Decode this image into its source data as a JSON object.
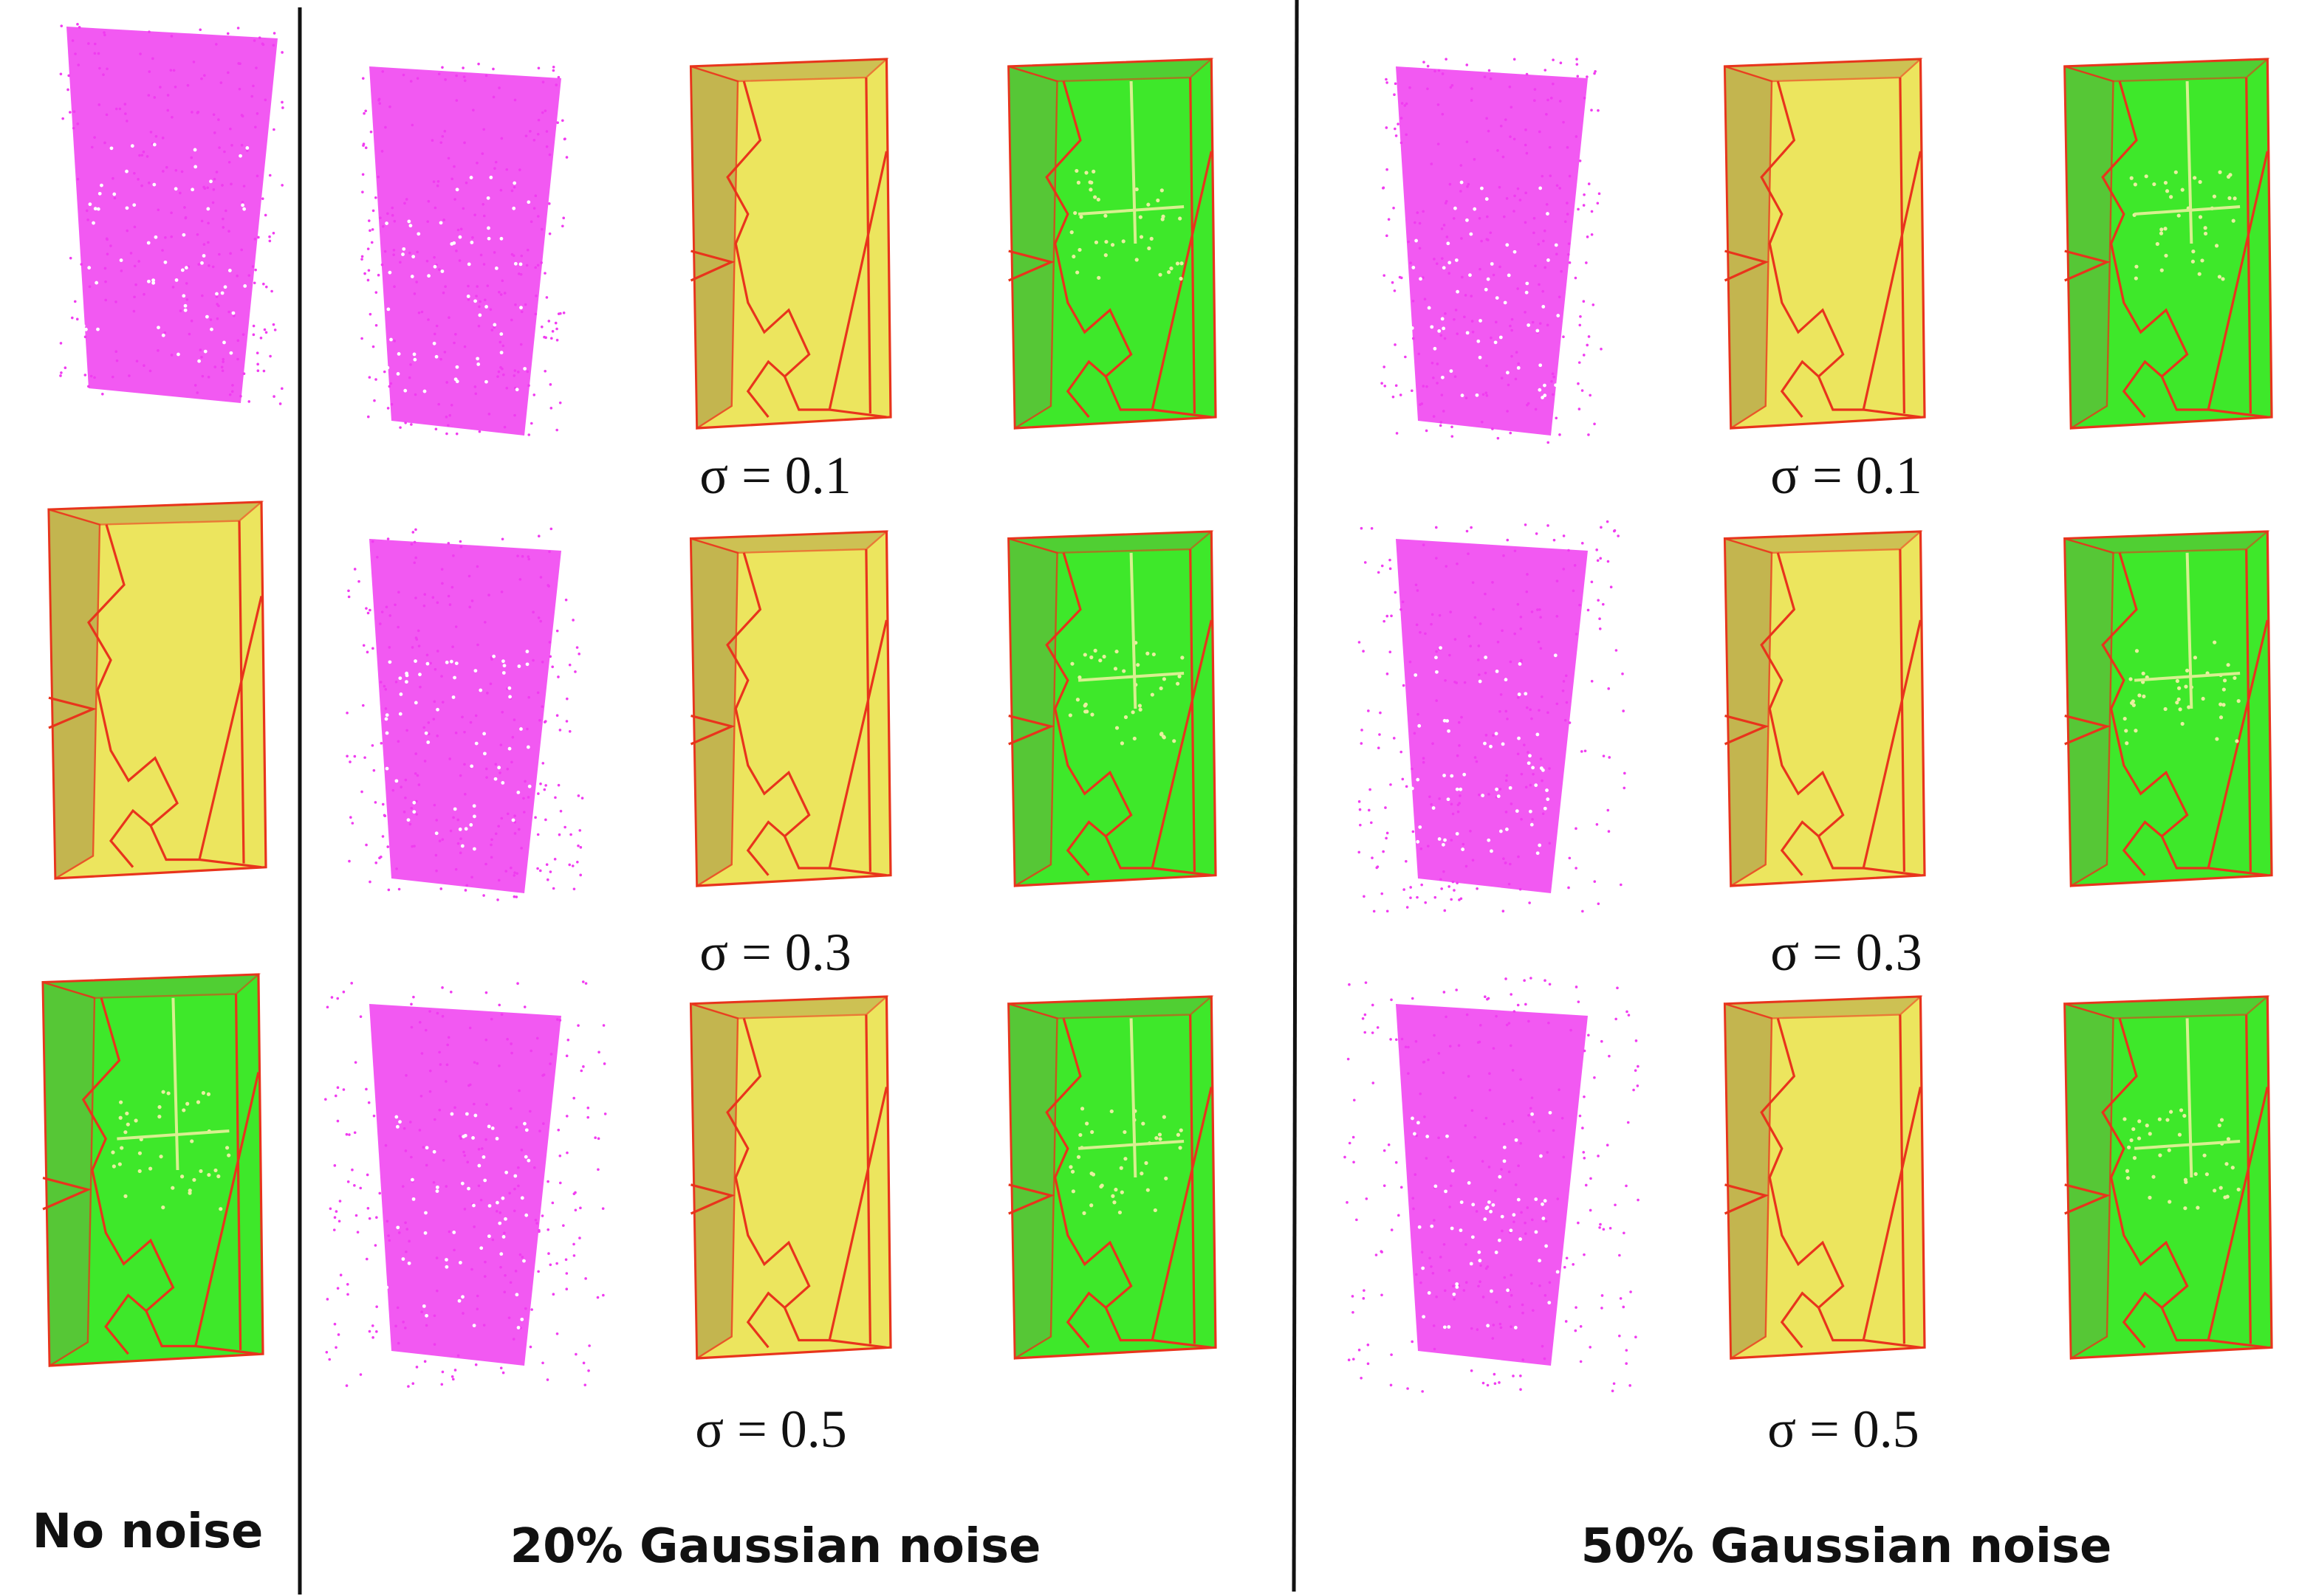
{
  "panels": [
    {
      "label": "No noise"
    },
    {
      "label": "20% Gaussian noise",
      "sigmas": [
        "σ = 0.1",
        "σ = 0.3",
        "σ = 0.5"
      ]
    },
    {
      "label": "50% Gaussian noise",
      "sigmas": [
        "σ = 0.1",
        "σ = 0.3",
        "σ = 0.5"
      ]
    }
  ]
}
